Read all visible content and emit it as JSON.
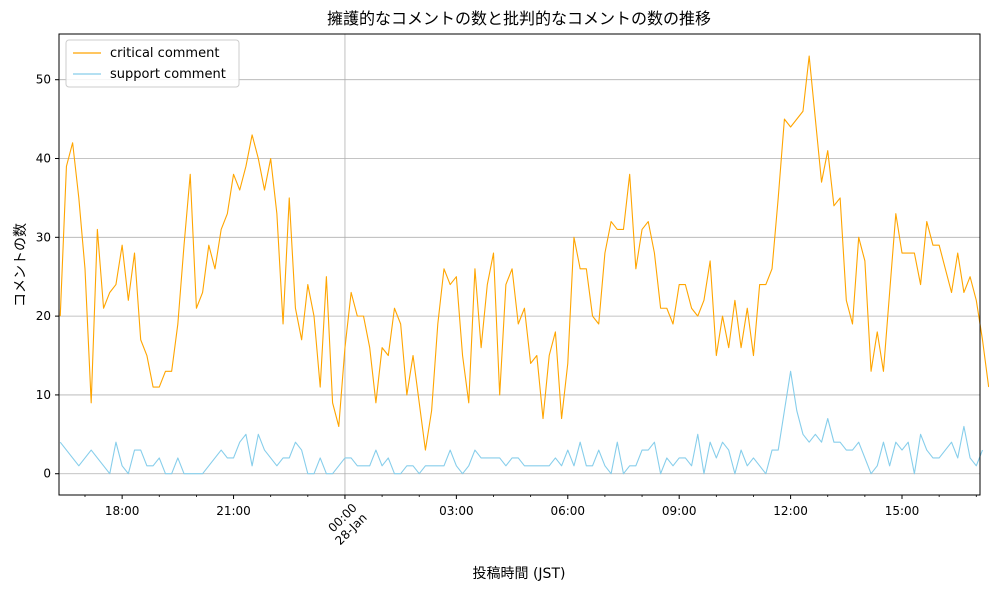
{
  "chart_data": {
    "type": "line",
    "title": "擁護的なコメントの数と批判的なコメントの数の推移",
    "xlabel": "投稿時間 (JST)",
    "ylabel": "コメントの数",
    "x_start": "2025-01-27 16:20",
    "interval_minutes": 10,
    "xlim_hours": [
      16.3,
      41.1
    ],
    "ylim": [
      -2.7,
      55.8
    ],
    "grid": true,
    "legend_position": "top-left",
    "x_ticks": [
      {
        "hour": 18,
        "label": "18:00"
      },
      {
        "hour": 21,
        "label": "21:00"
      },
      {
        "hour": 24,
        "label": "00:00",
        "sublabel": "28-Jan"
      },
      {
        "hour": 27,
        "label": "03:00"
      },
      {
        "hour": 30,
        "label": "06:00"
      },
      {
        "hour": 33,
        "label": "09:00"
      },
      {
        "hour": 36,
        "label": "12:00"
      },
      {
        "hour": 39,
        "label": "15:00"
      }
    ],
    "y_ticks": [
      0,
      10,
      20,
      30,
      40,
      50
    ],
    "series": [
      {
        "name": "critical comment",
        "color": "#ffa500",
        "values": [
          20,
          39,
          42,
          35,
          26,
          9,
          31,
          21,
          23,
          24,
          29,
          22,
          28,
          17,
          15,
          11,
          11,
          13,
          13,
          19,
          29,
          38,
          21,
          23,
          29,
          26,
          31,
          33,
          38,
          36,
          39,
          43,
          40,
          36,
          40,
          33,
          19,
          35,
          21,
          17,
          24,
          20,
          11,
          25,
          9,
          6,
          16,
          23,
          20,
          20,
          16,
          9,
          16,
          15,
          21,
          19,
          10,
          15,
          9,
          3,
          8,
          19,
          26,
          24,
          25,
          15,
          9,
          26,
          16,
          24,
          28,
          10,
          24,
          26,
          19,
          21,
          14,
          15,
          7,
          15,
          18,
          7,
          14,
          30,
          26,
          26,
          20,
          19,
          28,
          32,
          31,
          31,
          38,
          26,
          31,
          32,
          28,
          21,
          21,
          19,
          24,
          24,
          21,
          20,
          22,
          27,
          15,
          20,
          16,
          22,
          16,
          21,
          15,
          24,
          24,
          26,
          35,
          45,
          44,
          45,
          46,
          53,
          45,
          37,
          41,
          34,
          35,
          22,
          19,
          30,
          27,
          13,
          18,
          13,
          23,
          33,
          28,
          28,
          28,
          24,
          32,
          29,
          29,
          26,
          23,
          28,
          23,
          25,
          22,
          17,
          11
        ]
      },
      {
        "name": "support comment",
        "color": "#87ceeb",
        "values": [
          4,
          3,
          2,
          1,
          2,
          3,
          2,
          1,
          0,
          4,
          1,
          0,
          3,
          3,
          1,
          1,
          2,
          0,
          0,
          2,
          0,
          0,
          0,
          0,
          1,
          2,
          3,
          2,
          2,
          4,
          5,
          1,
          5,
          3,
          2,
          1,
          2,
          2,
          4,
          3,
          0,
          0,
          2,
          0,
          0,
          1,
          2,
          2,
          1,
          1,
          1,
          3,
          1,
          2,
          0,
          0,
          1,
          1,
          0,
          1,
          1,
          1,
          1,
          3,
          1,
          0,
          1,
          3,
          2,
          2,
          2,
          2,
          1,
          2,
          2,
          1,
          1,
          1,
          1,
          1,
          2,
          1,
          3,
          1,
          4,
          1,
          1,
          3,
          1,
          0,
          4,
          0,
          1,
          1,
          3,
          3,
          4,
          0,
          2,
          1,
          2,
          2,
          1,
          5,
          0,
          4,
          2,
          4,
          3,
          0,
          3,
          1,
          2,
          1,
          0,
          3,
          3,
          8,
          13,
          8,
          5,
          4,
          5,
          4,
          7,
          4,
          4,
          3,
          3,
          4,
          2,
          0,
          1,
          4,
          1,
          4,
          3,
          4,
          0,
          5,
          3,
          2,
          2,
          3,
          4,
          2,
          6,
          2,
          1,
          3
        ]
      }
    ]
  }
}
